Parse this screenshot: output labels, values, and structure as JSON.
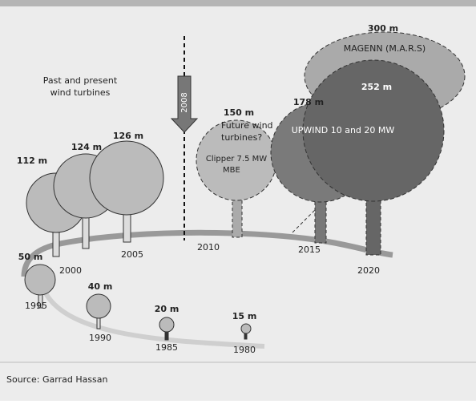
{
  "headings": {
    "past": [
      "Past and present",
      "wind turbines"
    ],
    "future": [
      "Future wind",
      "turbines?"
    ],
    "marker": "2008"
  },
  "turbines": [
    {
      "height": "15 m",
      "year": "1980"
    },
    {
      "height": "20 m",
      "year": "1985"
    },
    {
      "height": "40 m",
      "year": "1990"
    },
    {
      "height": "50 m",
      "year": "1995"
    },
    {
      "height": "112 m",
      "year": "2000"
    },
    {
      "height": "124 m"
    },
    {
      "height": "126 m",
      "year": "2005"
    },
    {
      "height": "150 m",
      "year": "2010",
      "name": [
        "Clipper 7.5 MW",
        "MBE"
      ]
    },
    {
      "height": "178 m",
      "year": "2015"
    },
    {
      "height": "252 m",
      "year": "2020",
      "name": [
        "UPWIND 10 and 20 MW"
      ]
    },
    {
      "height": "300 m",
      "name": [
        "MAGENN (M.A.R.S)"
      ]
    }
  ],
  "source": "Source: Garrad Hassan"
}
